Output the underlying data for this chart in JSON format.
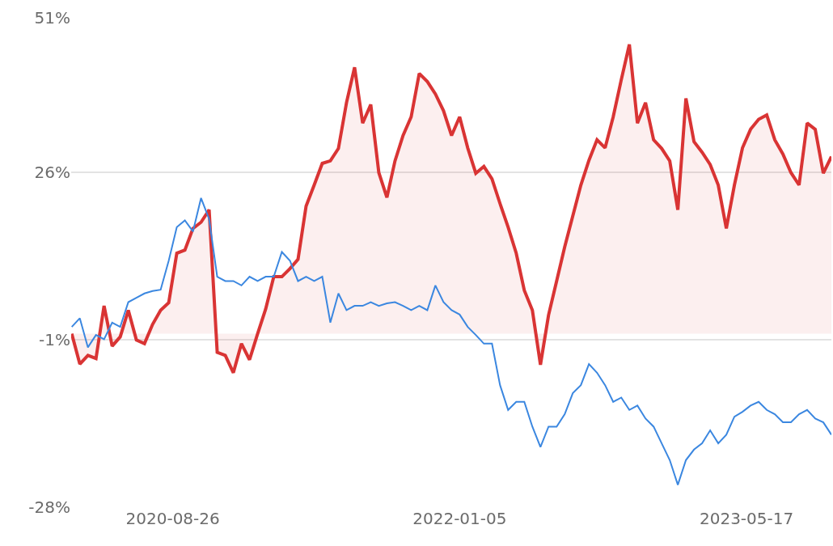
{
  "chart_data": {
    "type": "line",
    "grid": "y",
    "marker": "none",
    "line_style": "solid",
    "x": [
      "2020-03-04",
      "2020-03-18",
      "2020-04-01",
      "2020-04-15",
      "2020-04-29",
      "2020-05-13",
      "2020-05-27",
      "2020-06-10",
      "2020-06-24",
      "2020-07-08",
      "2020-07-22",
      "2020-08-05",
      "2020-08-19",
      "2020-09-02",
      "2020-09-16",
      "2020-09-30",
      "2020-10-14",
      "2020-10-28",
      "2020-11-11",
      "2020-11-25",
      "2020-12-09",
      "2020-12-23",
      "2021-01-06",
      "2021-01-20",
      "2021-02-03",
      "2021-02-17",
      "2021-03-03",
      "2021-03-17",
      "2021-03-31",
      "2021-04-14",
      "2021-04-28",
      "2021-05-12",
      "2021-05-26",
      "2021-06-09",
      "2021-06-23",
      "2021-07-07",
      "2021-07-21",
      "2021-08-04",
      "2021-08-18",
      "2021-09-01",
      "2021-09-15",
      "2021-09-29",
      "2021-10-13",
      "2021-10-27",
      "2021-11-10",
      "2021-11-24",
      "2021-12-08",
      "2021-12-22",
      "2022-01-05",
      "2022-01-19",
      "2022-02-02",
      "2022-02-16",
      "2022-03-02",
      "2022-03-16",
      "2022-03-30",
      "2022-04-13",
      "2022-04-27",
      "2022-05-11",
      "2022-05-25",
      "2022-06-08",
      "2022-06-22",
      "2022-07-06",
      "2022-07-20",
      "2022-08-03",
      "2022-08-17",
      "2022-08-31",
      "2022-09-14",
      "2022-09-28",
      "2022-10-12",
      "2022-10-26",
      "2022-11-09",
      "2022-11-23",
      "2022-12-07",
      "2022-12-21",
      "2023-01-04",
      "2023-01-18",
      "2023-02-01",
      "2023-02-15",
      "2023-03-01",
      "2023-03-15",
      "2023-03-29",
      "2023-04-12",
      "2023-04-26",
      "2023-05-10",
      "2023-05-24",
      "2023-06-07",
      "2023-06-21",
      "2023-07-05",
      "2023-07-19",
      "2023-08-02",
      "2023-08-16",
      "2023-08-30",
      "2023-09-13",
      "2023-09-27",
      "2023-10-11"
    ],
    "series": [
      {
        "type": "area",
        "color": "#d93434",
        "values": [
          0,
          -4.9,
          -3.5,
          -4.0,
          4.5,
          -2.0,
          -0.5,
          3.8,
          -1.0,
          -1.6,
          1.5,
          3.8,
          5,
          13,
          13.5,
          17,
          18,
          20,
          -3,
          -3.5,
          -6.3,
          -1.6,
          -4.2,
          0,
          4,
          9.2,
          9.2,
          10.5,
          12,
          20.6,
          24,
          27.5,
          27.9,
          29.9,
          37.3,
          43,
          34,
          37,
          26,
          22,
          27.9,
          32,
          35,
          42,
          40.7,
          38.7,
          36,
          32,
          35,
          30,
          25.9,
          27,
          25,
          21,
          17.2,
          13,
          7,
          3.8,
          -5,
          3,
          8.5,
          14,
          19,
          24,
          28,
          31.3,
          30,
          35,
          41,
          46.7,
          34,
          37.3,
          31.3,
          29.9,
          27.9,
          20,
          38,
          31,
          29.3,
          27.3,
          24,
          17,
          24,
          30,
          33,
          34.6,
          35.3,
          31.3,
          29,
          26,
          24,
          34,
          33,
          25.9,
          28.6
        ]
      },
      {
        "color": "#3b87e0",
        "values": [
          1.1,
          2.5,
          -2.2,
          -0.2,
          -0.9,
          1.8,
          1.1,
          5.1,
          5.8,
          6.5,
          6.9,
          7.1,
          11.8,
          17.2,
          18.3,
          16.5,
          21.9,
          18.5,
          9.2,
          8.5,
          8.5,
          7.8,
          9.2,
          8.5,
          9.2,
          9.2,
          13.2,
          11.8,
          8.5,
          9.2,
          8.5,
          9.2,
          1.8,
          6.5,
          3.8,
          4.5,
          4.5,
          5.1,
          4.5,
          4.9,
          5.1,
          4.5,
          3.8,
          4.5,
          3.8,
          7.8,
          5.1,
          3.8,
          3.1,
          1.1,
          -0.2,
          -1.6,
          -1.6,
          -8.3,
          -12.3,
          -11.0,
          -11.0,
          -15.0,
          -18.3,
          -15.0,
          -15.0,
          -13.0,
          -9.6,
          -8.3,
          -4.9,
          -6.3,
          -8.3,
          -11.0,
          -10.3,
          -12.3,
          -11.6,
          -13.7,
          -15.0,
          -17.7,
          -20.4,
          -24.4,
          -20.4,
          -18.7,
          -17.7,
          -15.6,
          -17.7,
          -16.3,
          -13.4,
          -12.6,
          -11.6,
          -11.0,
          -12.3,
          -13.0,
          -14.3,
          -14.3,
          -13.0,
          -12.3,
          -13.7,
          -14.3,
          -16.3
        ]
      }
    ],
    "xlim": [
      "2020-03-03",
      "2023-10-11"
    ],
    "xticks": [
      {
        "value": "2020-08-26",
        "label": "2020-08-26"
      },
      {
        "value": "2022-01-05",
        "label": "2022-01-05"
      },
      {
        "value": "2023-05-17",
        "label": "2023-05-17"
      }
    ],
    "ylim": [
      -28,
      51
    ],
    "yticks": [
      {
        "value": 51,
        "label": "51%"
      },
      {
        "value": 26,
        "label": "26%"
      },
      {
        "value": -1,
        "label": "-1%"
      },
      {
        "value": -28,
        "label": "-28%"
      }
    ]
  }
}
